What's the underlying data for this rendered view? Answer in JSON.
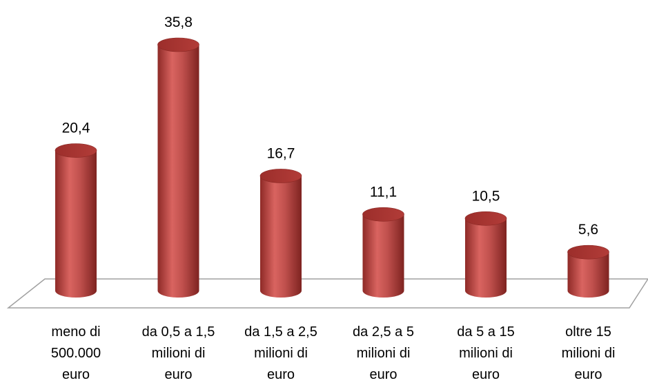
{
  "chart_data": {
    "type": "bar",
    "style": "3d-cylinder",
    "categories": [
      [
        "meno di",
        "500.000",
        "euro"
      ],
      [
        "da 0,5 a 1,5",
        "milioni di",
        "euro"
      ],
      [
        "da 1,5 a 2,5",
        "milioni di",
        "euro"
      ],
      [
        "da 2,5 a 5",
        "milioni di",
        "euro"
      ],
      [
        "da 5 a 15",
        "milioni di",
        "euro"
      ],
      [
        "oltre 15",
        "milioni di",
        "euro"
      ]
    ],
    "values": [
      20.4,
      35.8,
      16.7,
      11.1,
      10.5,
      5.6
    ],
    "value_labels": [
      "20,4",
      "35,8",
      "16,7",
      "11,1",
      "10,5",
      "5,6"
    ],
    "ylim": [
      0,
      35.8
    ],
    "grid": false,
    "legend": "none",
    "colors": {
      "bar_body": "#c0504d",
      "bar_top": "#a8302c",
      "floor_stroke": "#a0a0a0"
    }
  }
}
